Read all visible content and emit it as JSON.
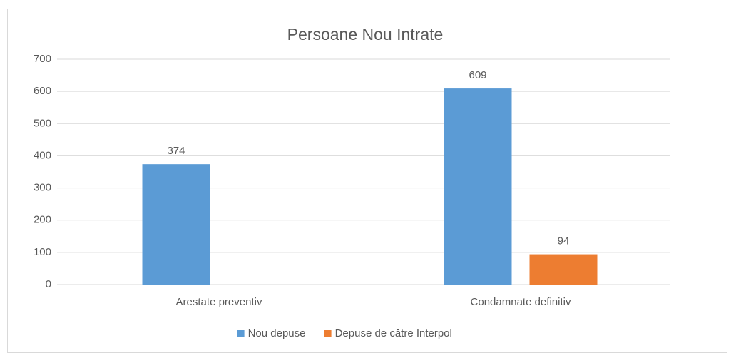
{
  "chart_data": {
    "type": "bar",
    "title": "Persoane Nou Intrate",
    "categories": [
      "Arestate preventiv",
      "Condamnate definitiv"
    ],
    "series": [
      {
        "name": "Nou depuse",
        "color": "#5b9bd5",
        "values": [
          374,
          609
        ]
      },
      {
        "name": "Depuse de către Interpol",
        "color": "#ed7d31",
        "values": [
          null,
          94
        ]
      }
    ],
    "ylim": [
      0,
      700
    ],
    "yticks": [
      0,
      100,
      200,
      300,
      400,
      500,
      600,
      700
    ],
    "grid": true,
    "legend": "bottom"
  }
}
